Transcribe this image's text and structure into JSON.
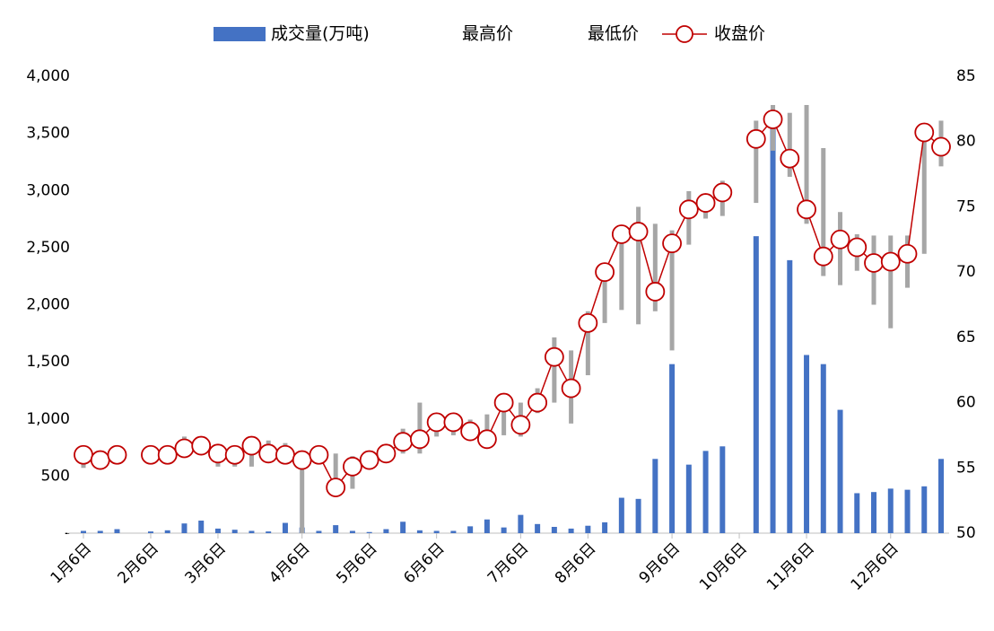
{
  "chart_data": {
    "type": "combo",
    "categories": [
      "1月6日",
      null,
      null,
      null,
      "2月6日",
      null,
      null,
      null,
      "3月6日",
      null,
      null,
      null,
      null,
      "4月6日",
      null,
      null,
      null,
      "5月6日",
      null,
      null,
      null,
      "6月6日",
      null,
      null,
      null,
      null,
      "7月6日",
      null,
      null,
      null,
      "8月6日",
      null,
      null,
      null,
      null,
      "9月6日",
      null,
      null,
      null,
      "10月6日",
      null,
      null,
      null,
      "11月6日",
      null,
      null,
      null,
      null,
      "12月6日",
      null,
      null,
      null
    ],
    "ylim": [
      0,
      4000
    ],
    "yticks": [
      {
        "value": 0,
        "label": "-"
      },
      500,
      {
        "value": 1000,
        "label": "1,000"
      },
      {
        "value": 1500,
        "label": "1,500"
      },
      {
        "value": 2000,
        "label": "2,000"
      },
      {
        "value": 2500,
        "label": "2,500"
      },
      {
        "value": 3000,
        "label": "3,000"
      },
      {
        "value": 3500,
        "label": "3,500"
      },
      {
        "value": 4000,
        "label": "4,000"
      }
    ],
    "y2lim": [
      50,
      85
    ],
    "y2ticks": [
      50,
      55,
      60,
      65,
      70,
      75,
      80,
      85
    ],
    "hilo_color": "#a6a6a6",
    "series": [
      {
        "name": "成交量(万吨)",
        "type": "bar",
        "color": "#4472c4",
        "values": [
          20,
          20,
          35,
          null,
          15,
          25,
          85,
          110,
          40,
          30,
          20,
          15,
          90,
          50,
          20,
          70,
          20,
          10,
          35,
          100,
          25,
          20,
          20,
          60,
          120,
          50,
          160,
          80,
          55,
          40,
          65,
          95,
          310,
          300,
          650,
          1480,
          600,
          720,
          760,
          null,
          2600,
          3550,
          2390,
          1560,
          1480,
          1080,
          350,
          360,
          390,
          380,
          410,
          650
        ]
      },
      {
        "name": "最高价",
        "type": "high",
        "axis": "y2",
        "values": [
          56.1,
          56.0,
          56.3,
          null,
          56.3,
          56.3,
          57.4,
          57.2,
          56.7,
          56.7,
          57.2,
          57.1,
          56.9,
          56.1,
          56.1,
          56.1,
          55.9,
          56.1,
          56.7,
          58.0,
          60.0,
          59.1,
          59.1,
          58.7,
          59.1,
          60.0,
          60.0,
          61.1,
          65.0,
          64.0,
          67.0,
          70.7,
          72.8,
          75.0,
          73.7,
          73.2,
          76.2,
          75.9,
          77.0,
          null,
          81.6,
          82.8,
          82.2,
          82.8,
          79.5,
          74.6,
          72.9,
          72.8,
          72.8,
          72.8,
          81.0,
          81.6
        ]
      },
      {
        "name": "最低价",
        "type": "low",
        "axis": "y2",
        "values": [
          55.0,
          55.3,
          55.7,
          null,
          55.7,
          55.7,
          55.8,
          56.1,
          55.1,
          55.1,
          55.1,
          55.8,
          55.4,
          50.0,
          55.5,
          53.0,
          53.4,
          55.1,
          55.4,
          56.1,
          56.1,
          57.4,
          57.5,
          57.2,
          56.8,
          57.5,
          57.4,
          59.2,
          60.0,
          58.4,
          62.1,
          66.1,
          67.1,
          66.0,
          67.0,
          64.0,
          72.1,
          74.1,
          74.3,
          null,
          75.3,
          79.3,
          77.3,
          73.7,
          69.7,
          69.0,
          70.1,
          67.5,
          65.7,
          68.8,
          71.4,
          78.1
        ]
      },
      {
        "name": "收盘价",
        "type": "line",
        "axis": "y2",
        "color": "#c00000",
        "values": [
          56.0,
          55.6,
          56.0,
          null,
          56.0,
          56.0,
          56.5,
          56.7,
          56.1,
          56.0,
          56.7,
          56.1,
          56.0,
          55.6,
          56.0,
          53.5,
          55.1,
          55.6,
          56.1,
          57.0,
          57.2,
          58.5,
          58.5,
          57.8,
          57.2,
          60.0,
          58.3,
          60.0,
          63.5,
          61.1,
          66.1,
          70.0,
          72.9,
          73.1,
          68.5,
          72.2,
          74.8,
          75.3,
          76.1,
          null,
          80.2,
          81.7,
          78.7,
          74.8,
          71.2,
          72.5,
          71.9,
          70.7,
          70.8,
          71.4,
          80.7,
          79.6
        ]
      }
    ]
  }
}
